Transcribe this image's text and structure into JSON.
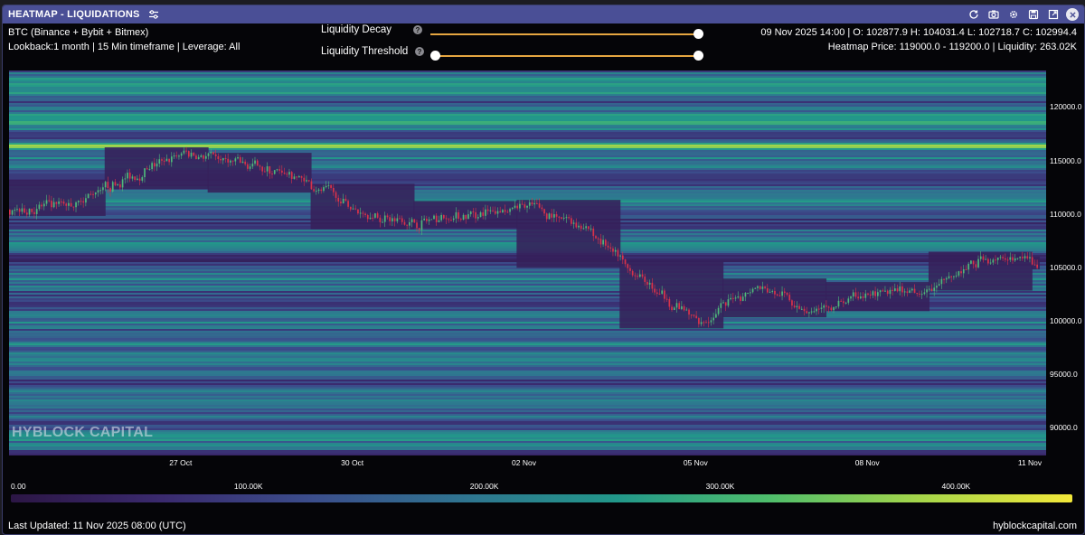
{
  "window": {
    "title": "HEATMAP - LIQUIDATIONS",
    "toolbar_icons": [
      "refresh-icon",
      "camera-icon",
      "gear-icon",
      "save-icon",
      "expand-icon",
      "close-icon"
    ]
  },
  "info": {
    "asset_line": "BTC (Binance + Bybit + Bitmex)",
    "params_line": "Lookback:1 month | 15 Min timeframe | Leverage: All",
    "ohlc_line": "09 Nov 2025 14:00 | O: 102877.9 H: 104031.4 L: 102718.7 C: 102994.4",
    "heatmap_line": "Heatmap Price: 119000.0 - 119200.0 | Liquidity: 263.02K"
  },
  "controls": {
    "liquidity_decay": {
      "label": "Liquidity Decay",
      "value": 1.0
    },
    "liquidity_threshold": {
      "label": "Liquidity Threshold",
      "value_range": [
        0.0,
        1.0
      ]
    }
  },
  "colors": {
    "titlebar": "#4a4f96",
    "slider_track": "#e6a641",
    "candle_up": "#4fb87a",
    "candle_down": "#d8324a",
    "colormap": [
      "#2c1645",
      "#3a2a6e",
      "#3b4e8c",
      "#2f7590",
      "#22988a",
      "#4fbe6c",
      "#a6d64a",
      "#f3e83a"
    ]
  },
  "chart_data": {
    "type": "heatmap",
    "title": "",
    "price_axis": {
      "labels": [
        "120000.0",
        "115000.0",
        "110000.0",
        "105000.0",
        "100000.0",
        "95000.0",
        "90000.0"
      ],
      "range": [
        87500,
        123500
      ]
    },
    "date_axis": {
      "labels": [
        "27 Oct",
        "30 Oct",
        "02 Nov",
        "05 Nov",
        "08 Nov",
        "11 Nov"
      ],
      "range": [
        "24 Oct",
        "11 Nov"
      ]
    },
    "price_path": [
      [
        "24 Oct",
        110500
      ],
      [
        "25 Oct",
        111000
      ],
      [
        "26 Oct",
        113500
      ],
      [
        "27 Oct",
        115800
      ],
      [
        "28 Oct",
        114800
      ],
      [
        "29 Oct",
        113500
      ],
      [
        "30 Oct",
        110500
      ],
      [
        "31 Oct",
        109200
      ],
      [
        "01 Nov",
        110000
      ],
      [
        "02 Nov",
        110800
      ],
      [
        "03 Nov",
        109000
      ],
      [
        "04 Nov",
        104000
      ],
      [
        "05 Nov",
        99800
      ],
      [
        "06 Nov",
        103500
      ],
      [
        "07 Nov",
        101000
      ],
      [
        "08 Nov",
        102500
      ],
      [
        "09 Nov",
        102900
      ],
      [
        "10 Nov",
        106000
      ],
      [
        "11 Nov",
        105500
      ]
    ],
    "bright_bands": [
      {
        "price": 116500,
        "level": 0.95
      },
      {
        "price": 121500,
        "level": 0.55
      },
      {
        "price": 98000,
        "level": 0.6
      },
      {
        "price": 95200,
        "level": 0.5
      },
      {
        "price": 91200,
        "level": 0.5
      },
      {
        "price": 88500,
        "level": 0.55
      }
    ],
    "colorbar": {
      "labels": [
        "0.00",
        "100.00K",
        "200.00K",
        "300.00K",
        "400.00K"
      ],
      "range": [
        0,
        450000
      ]
    },
    "watermark": "HYBLOCK CAPITAL"
  },
  "footer": {
    "last_updated": "Last Updated: 11 Nov 2025 08:00 (UTC)",
    "brand": "hyblockcapital.com"
  }
}
